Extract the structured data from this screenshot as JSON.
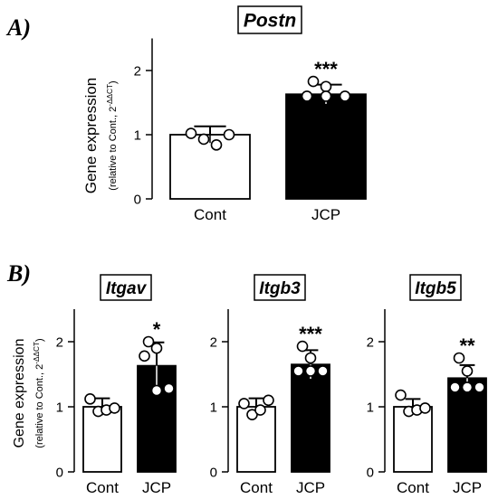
{
  "panel_a_label": "A)",
  "panel_b_label": "B)",
  "ylabel": "Gene expression",
  "ylabel_sub_prefix": "(relative to Cont., 2",
  "ylabel_sub_exp": "-ΔΔCT",
  "ylabel_sub_suffix": ")",
  "chart_data": [
    {
      "type": "bar",
      "title": "Postn",
      "categories": [
        "Cont",
        "JCP"
      ],
      "values": [
        1.0,
        1.63
      ],
      "errors": [
        0.13,
        0.15
      ],
      "points": [
        [
          1.02,
          0.93,
          0.84,
          1.0
        ],
        [
          1.83,
          1.75,
          1.6,
          1.6,
          1.6
        ]
      ],
      "significance": "***",
      "ylim": [
        0,
        2.5
      ],
      "yticks": [
        "0",
        "1",
        "2"
      ]
    },
    {
      "type": "bar",
      "title": "Itgav",
      "categories": [
        "Cont",
        "JCP"
      ],
      "values": [
        1.0,
        1.63
      ],
      "errors": [
        0.13,
        0.36
      ],
      "points": [
        [
          1.12,
          0.93,
          0.95,
          0.98
        ],
        [
          2.0,
          1.9,
          1.78,
          1.25,
          1.28
        ]
      ],
      "significance": "*",
      "ylim": [
        0,
        2.5
      ],
      "yticks": [
        "0",
        "1",
        "2"
      ]
    },
    {
      "type": "bar",
      "title": "Itgb3",
      "categories": [
        "Cont",
        "JCP"
      ],
      "values": [
        1.0,
        1.65
      ],
      "errors": [
        0.13,
        0.22
      ],
      "points": [
        [
          1.05,
          0.88,
          0.95,
          1.1
        ],
        [
          1.93,
          1.75,
          1.55,
          1.55,
          1.55
        ]
      ],
      "significance": "***",
      "ylim": [
        0,
        2.5
      ],
      "yticks": [
        "0",
        "1",
        "2"
      ]
    },
    {
      "type": "bar",
      "title": "Itgb5",
      "categories": [
        "Cont",
        "JCP"
      ],
      "values": [
        1.0,
        1.44
      ],
      "errors": [
        0.12,
        0.2
      ],
      "points": [
        [
          1.18,
          0.93,
          0.95,
          0.98
        ],
        [
          1.75,
          1.55,
          1.3,
          1.3,
          1.3
        ]
      ],
      "significance": "**",
      "ylim": [
        0,
        2.5
      ],
      "yticks": [
        "0",
        "1",
        "2"
      ]
    }
  ]
}
